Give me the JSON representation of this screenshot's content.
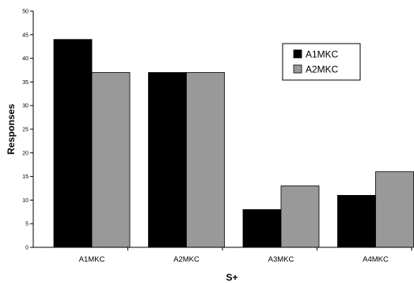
{
  "chart_data": {
    "type": "bar",
    "title": "",
    "xlabel": "S+",
    "ylabel": "Responses",
    "categories": [
      "A1MKC",
      "A2MKC",
      "A3MKC",
      "A4MKC"
    ],
    "series": [
      {
        "name": "A1MKC",
        "color": "#000000",
        "values": [
          44,
          37,
          8,
          11
        ]
      },
      {
        "name": "A2MKC",
        "color": "#999999",
        "values": [
          37,
          37,
          13,
          16
        ]
      }
    ],
    "ylim": [
      0,
      50
    ],
    "yticks": [
      0,
      5,
      10,
      15,
      20,
      25,
      30,
      35,
      40,
      45,
      50
    ],
    "grid": false,
    "legend_position": "top-right"
  }
}
